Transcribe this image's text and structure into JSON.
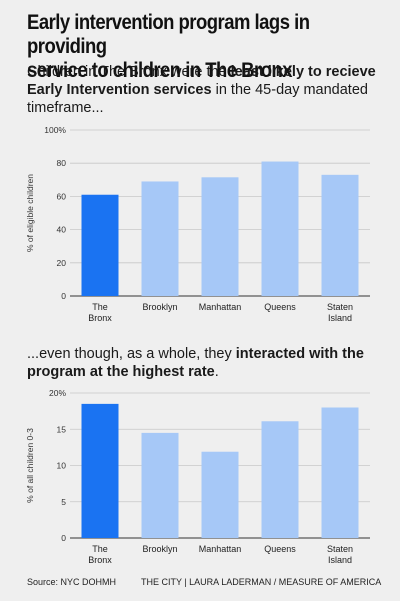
{
  "title_line1": "Early intervention program lags in providing",
  "title_line2": "service to children in The Bronx",
  "subtitle1": {
    "pre": "Children in The Bronx were the ",
    "bold": "least likely to recieve Early Intervention services",
    "post": " in the 45-day mandated timeframe..."
  },
  "subtitle2": {
    "pre": "...even though, as a whole, they ",
    "bold": "interacted with the program at the highest rate",
    "post": "."
  },
  "colors": {
    "highlight": "#1a73f2",
    "bar": "#a6c8f7",
    "grid": "#c8c8c8",
    "axis": "#333333"
  },
  "chart_data": [
    {
      "type": "bar",
      "categories": [
        [
          "The",
          "Bronx"
        ],
        [
          "Brooklyn"
        ],
        [
          "Manhattan"
        ],
        [
          "Queens"
        ],
        [
          "Staten",
          "Island"
        ]
      ],
      "values": [
        61,
        69,
        71.5,
        81,
        73
      ],
      "highlight_index": 0,
      "ylabel": "% of eligible children",
      "ylim": [
        0,
        100
      ],
      "yticks": [
        0,
        20,
        40,
        60,
        80,
        100
      ],
      "ytick_labels": [
        "0",
        "20",
        "40",
        "60",
        "80",
        "100%"
      ],
      "grid": true
    },
    {
      "type": "bar",
      "categories": [
        [
          "The",
          "Bronx"
        ],
        [
          "Brooklyn"
        ],
        [
          "Manhattan"
        ],
        [
          "Queens"
        ],
        [
          "Staten",
          "Island"
        ]
      ],
      "values": [
        18.5,
        14.5,
        11.9,
        16.1,
        18
      ],
      "highlight_index": 0,
      "ylabel": "% of all children 0-3",
      "ylim": [
        0,
        20
      ],
      "yticks": [
        0,
        5,
        10,
        15,
        20
      ],
      "ytick_labels": [
        "0",
        "5",
        "10",
        "15",
        "20%"
      ],
      "grid": true
    }
  ],
  "footer": {
    "source": "Source: NYC DOHMH",
    "credit": "THE CITY | LAURA LADERMAN / MEASURE OF AMERICA"
  }
}
